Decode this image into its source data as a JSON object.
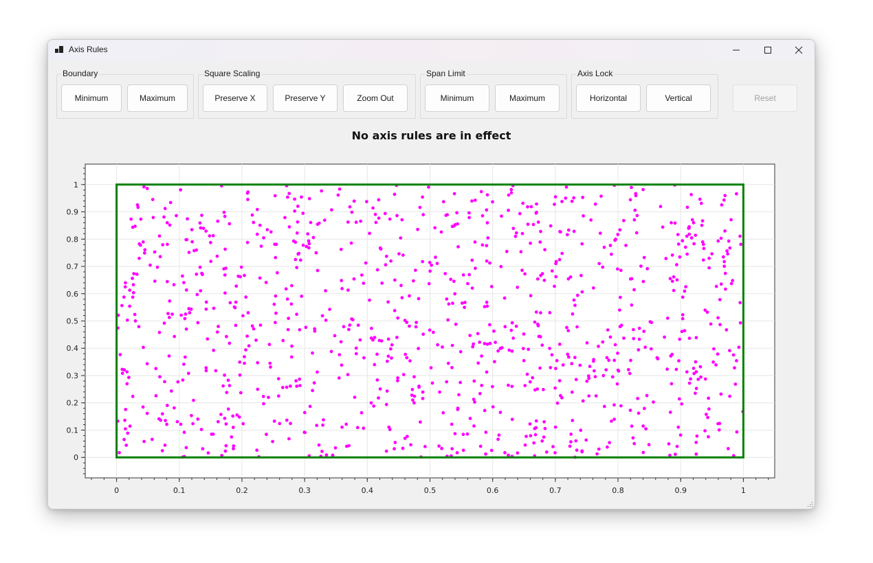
{
  "window": {
    "title": "Axis Rules",
    "minimize_label": "minimize",
    "maximize_label": "maximize",
    "close_label": "close"
  },
  "toolbar": {
    "groups": [
      {
        "label": "Boundary",
        "buttons": [
          "Minimum",
          "Maximum"
        ]
      },
      {
        "label": "Square Scaling",
        "buttons": [
          "Preserve X",
          "Preserve Y",
          "Zoom Out"
        ]
      },
      {
        "label": "Span Limit",
        "buttons": [
          "Minimum",
          "Maximum"
        ]
      },
      {
        "label": "Axis Lock",
        "buttons": [
          "Horizontal",
          "Vertical"
        ]
      }
    ],
    "reset_label": "Reset",
    "reset_enabled": false
  },
  "plot": {
    "title": "No axis rules are in effect"
  },
  "chart_data": {
    "type": "scatter",
    "title": "No axis rules are in effect",
    "xlabel": "",
    "ylabel": "",
    "xlim": [
      -0.05,
      1.05
    ],
    "ylim": [
      -0.075,
      1.075
    ],
    "x_ticks": [
      "0",
      "0.1",
      "0.2",
      "0.3",
      "0.4",
      "0.5",
      "0.6",
      "0.7",
      "0.8",
      "0.9",
      "1"
    ],
    "y_ticks": [
      "0",
      "0.1",
      "0.2",
      "0.3",
      "0.4",
      "0.5",
      "0.6",
      "0.7",
      "0.8",
      "0.9",
      "1"
    ],
    "grid": true,
    "rectangle": {
      "x": [
        0,
        1
      ],
      "y": [
        0,
        1
      ],
      "color": "#008000"
    },
    "marker_color": "#ff00ff",
    "point_count": 1000,
    "points_note": "uniformly random points spanning x 0–1, y 0–1"
  }
}
